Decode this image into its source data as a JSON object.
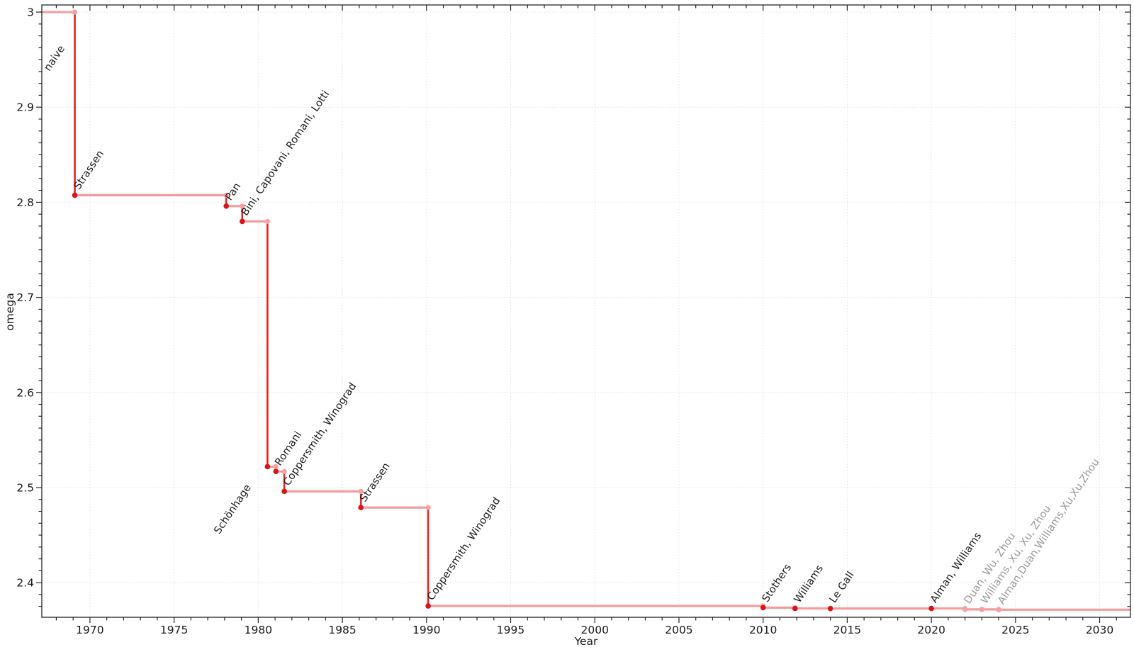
{
  "chart_data": {
    "type": "line",
    "subtype": "step-post",
    "title": "",
    "xlabel": "Year",
    "ylabel": "omega",
    "grid": "dotted-major-both-axes",
    "legend": "none",
    "xlim": [
      1967.14,
      2031.83
    ],
    "ylim": [
      2.3636,
      3.0075
    ],
    "xticks": [
      {
        "v": 1970,
        "label": "1970"
      },
      {
        "v": 1975,
        "label": "1975"
      },
      {
        "v": 1980,
        "label": "1980"
      },
      {
        "v": 1985,
        "label": "1985"
      },
      {
        "v": 1990,
        "label": "1990"
      },
      {
        "v": 1995,
        "label": "1995"
      },
      {
        "v": 2000,
        "label": "2000"
      },
      {
        "v": 2005,
        "label": "2005"
      },
      {
        "v": 2010,
        "label": "2010"
      },
      {
        "v": 2015,
        "label": "2015"
      },
      {
        "v": 2020,
        "label": "2020"
      },
      {
        "v": 2025,
        "label": "2025"
      },
      {
        "v": 2030,
        "label": "2030"
      }
    ],
    "x_minor_step": 1,
    "yticks": [
      {
        "v": 2.4,
        "label": "2.4"
      },
      {
        "v": 2.5,
        "label": "2.5"
      },
      {
        "v": 2.6,
        "label": "2.6"
      },
      {
        "v": 2.7,
        "label": "2.7"
      },
      {
        "v": 2.8,
        "label": "2.8"
      },
      {
        "v": 2.9,
        "label": "2.9"
      },
      {
        "v": 3.0,
        "label": "3"
      }
    ],
    "y_minor_step": 0.0125,
    "start": {
      "label": "naive",
      "omega": 3.0,
      "label_dx": -36,
      "label_dy": 84
    },
    "events": [
      {
        "year": 1969.1,
        "omega": 2.8074,
        "label": "Strassen",
        "strong": true
      },
      {
        "year": 1978.1,
        "omega": 2.796,
        "label": "Pan",
        "strong": true
      },
      {
        "year": 1979.05,
        "omega": 2.7799,
        "label": "Bini, Capovani, Romani, Lotti",
        "strong": true
      },
      {
        "year": 1980.55,
        "omega": 2.522,
        "label": "Schönhage",
        "strong": true,
        "label_dx": -68,
        "label_dy": 96
      },
      {
        "year": 1981.05,
        "omega": 2.517,
        "label": "Romani",
        "strong": true
      },
      {
        "year": 1981.55,
        "omega": 2.496,
        "label": "Coppersmith, Winograd",
        "strong": true
      },
      {
        "year": 1986.1,
        "omega": 2.479,
        "label": "Strassen",
        "strong": true
      },
      {
        "year": 1990.1,
        "omega": 2.3755,
        "label": "Coppersmith, Winograd",
        "strong": true
      },
      {
        "year": 2010.0,
        "omega": 2.3737,
        "label": "Stothers",
        "strong": true
      },
      {
        "year": 2011.9,
        "omega": 2.3729,
        "label": "Williams",
        "strong": true
      },
      {
        "year": 2014.0,
        "omega": 2.3728,
        "label": "Le Gall",
        "strong": true
      },
      {
        "year": 2020.0,
        "omega": 2.37286,
        "label": "Alman, Williams",
        "strong": true
      },
      {
        "year": 2022.0,
        "omega": 2.3719,
        "label": "Duan, Wu, Zhou",
        "strong": false
      },
      {
        "year": 2023.0,
        "omega": 2.371866,
        "label": "Williams, Xu, Xu, Zhou",
        "strong": false
      },
      {
        "year": 2024.0,
        "omega": 2.371552,
        "label": "Alman,Duan,Williams,Xu,Xu,Zhou",
        "strong": false
      }
    ]
  },
  "style": {
    "plateau_color": "#f49c9c",
    "drop_color": "#e62222",
    "marker_strong_color": "#d81414",
    "marker_light_color": "#f7a2a2",
    "label_strong_color": "#1a1a1a",
    "label_light_color": "#999999",
    "grid_color": "#e2e2e2",
    "spine_color": "#262626",
    "tick_label_color": "#1a1a1a",
    "label_rotation_deg": -56
  }
}
